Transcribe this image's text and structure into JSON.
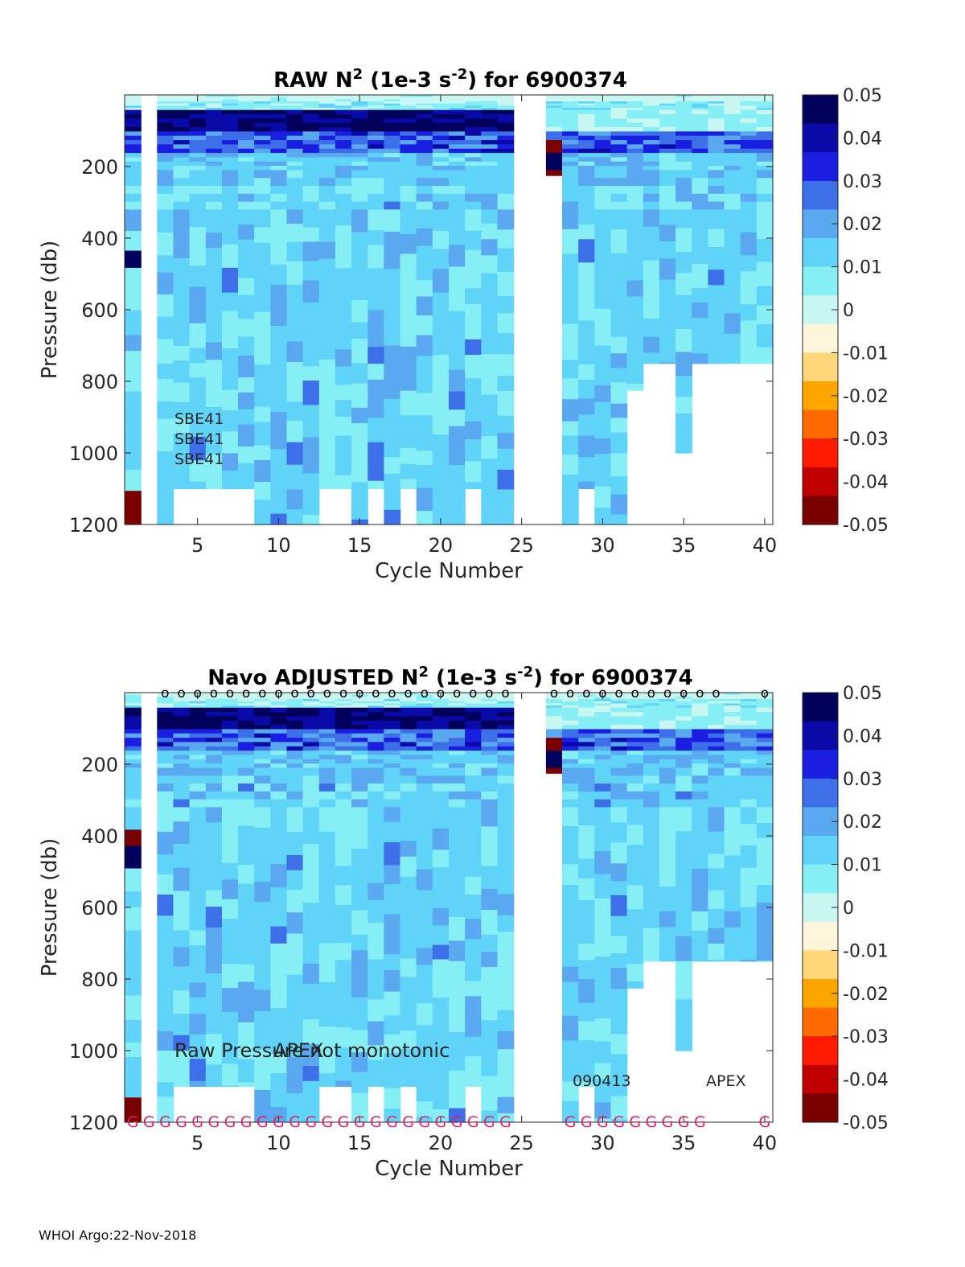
{
  "footer": "WHOI Argo:22-Nov-2018",
  "colors": {
    "colormap": [
      "#7a0000",
      "#c00000",
      "#ff1a00",
      "#ff6a00",
      "#ffa500",
      "#ffd77a",
      "#fff5dc",
      "#c8f7f2",
      "#86eef5",
      "#5fd3f8",
      "#5aa8f0",
      "#3d6fe8",
      "#1a1ee0",
      "#0a0aa8",
      "#00005c"
    ],
    "missing": "#ffffff",
    "flag_g": "#e0206a"
  },
  "chart_data": [
    {
      "id": "raw",
      "type": "heatmap",
      "title_prefix": "RAW N",
      "title_sup1": "2",
      "title_mid": " (1e-3 s",
      "title_sup2": "-2",
      "title_suffix": ") for 6900374",
      "xlabel": "Cycle Number",
      "ylabel": "Pressure (db)",
      "xlim": [
        1,
        40
      ],
      "ylim": [
        0,
        1200
      ],
      "xticks": [
        5,
        10,
        15,
        20,
        25,
        30,
        35,
        40
      ],
      "yticks": [
        200,
        400,
        600,
        800,
        1000,
        1200
      ],
      "colorbar": {
        "min": -0.05,
        "max": 0.05,
        "ticks": [
          "0.05",
          "0.04",
          "0.03",
          "0.02",
          "0.01",
          "0",
          "-0.01",
          "-0.02",
          "-0.03",
          "-0.04",
          "-0.05"
        ]
      },
      "annotations": [
        "SBE41",
        "SBE41",
        "SBE41"
      ],
      "cycles_profiled": [
        1,
        3,
        4,
        5,
        6,
        7,
        8,
        9,
        10,
        11,
        12,
        13,
        14,
        15,
        16,
        17,
        18,
        19,
        20,
        21,
        22,
        23,
        24,
        27,
        28,
        29,
        30,
        31,
        32,
        33,
        34,
        35,
        36,
        37,
        38,
        39,
        40
      ],
      "cycles_missing": [
        2,
        25,
        26
      ]
    },
    {
      "id": "adjusted",
      "type": "heatmap",
      "title_prefix": "Navo  ADJUSTED N",
      "title_sup1": "2",
      "title_mid": " (1e-3 s",
      "title_sup2": "-2",
      "title_suffix": ") for 6900374",
      "xlabel": "Cycle Number",
      "ylabel": "Pressure (db)",
      "xlim": [
        1,
        40
      ],
      "ylim": [
        0,
        1200
      ],
      "xticks": [
        5,
        10,
        15,
        20,
        25,
        30,
        35,
        40
      ],
      "yticks": [
        200,
        400,
        600,
        800,
        1000,
        1200
      ],
      "colorbar": {
        "min": -0.05,
        "max": 0.05,
        "ticks": [
          "0.05",
          "0.04",
          "0.03",
          "0.02",
          "0.01",
          "0",
          "-0.01",
          "-0.02",
          "-0.03",
          "-0.04",
          "-0.05"
        ]
      },
      "annotations": [
        "Raw Pressure not monotonic",
        "APEX",
        "090413",
        "APEX"
      ],
      "top_markers": [
        "o",
        "o",
        "o",
        "o",
        "o",
        "o",
        "o",
        "o",
        "o",
        "o",
        "o",
        "o",
        "o",
        "o",
        "o",
        "o",
        "o",
        "o",
        "o",
        "o",
        "o",
        "o",
        "o",
        "o",
        "o",
        "o",
        "o",
        "o",
        "o",
        "o",
        "o",
        "o",
        "o",
        "o"
      ],
      "bottom_flags": [
        "G",
        "G",
        "G",
        "G",
        "G",
        "G",
        "G",
        "G",
        "G",
        "G",
        "G",
        "G",
        "G",
        "G",
        "G",
        "G",
        "G",
        "G",
        "G",
        "G",
        "G",
        "G",
        "G",
        "G",
        "G",
        "G",
        "G",
        "G",
        "G",
        "G",
        "G",
        "G",
        "G",
        "G"
      ],
      "cycles_profiled": [
        1,
        3,
        4,
        5,
        6,
        7,
        8,
        9,
        10,
        11,
        12,
        13,
        14,
        15,
        16,
        17,
        18,
        19,
        20,
        21,
        22,
        23,
        24,
        27,
        28,
        29,
        30,
        31,
        32,
        33,
        34,
        35,
        36,
        37,
        38,
        39,
        40
      ],
      "cycles_missing": [
        2,
        25,
        26
      ]
    }
  ]
}
